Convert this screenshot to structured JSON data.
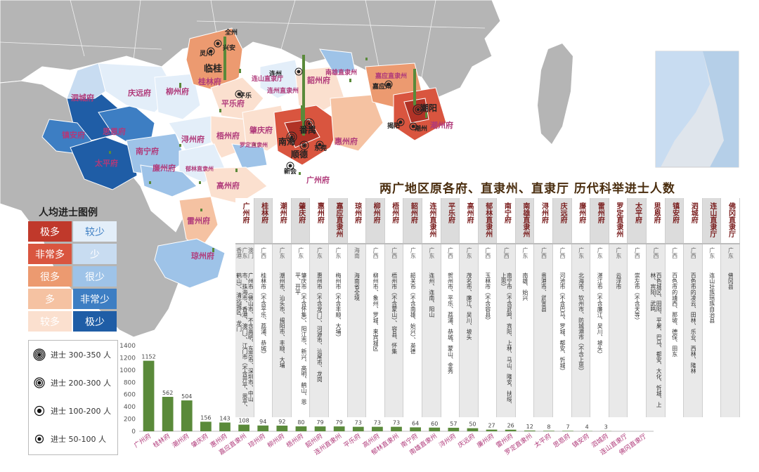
{
  "title": "两广地区原各府、直隶州、直隶厅 历代科举进士人数",
  "colors": {
    "ji_duo": "#c0392b",
    "fei_chang_duo": "#d9553f",
    "hen_duo": "#ec9a70",
    "duo": "#f5c2a2",
    "jiao_duo": "#fbe0cf",
    "jiao_shao": "#e3eef9",
    "shao": "#c8dcf1",
    "hen_shao": "#9ec3e8",
    "fei_chang_shao": "#3d7ec3",
    "ji_shao": "#1f5da6",
    "land_gray": "#b5b5b5",
    "sea": "#ffffff",
    "bar": "#5a8a3a",
    "header_bg": "#a4a4a4"
  },
  "legend": {
    "title": "人均进士图例",
    "left": [
      "极多",
      "非常多",
      "很多",
      "多",
      "较多"
    ],
    "right": [
      "较少",
      "少",
      "很少",
      "非常少",
      "极少"
    ]
  },
  "symbols": [
    {
      "icon": "target-4-icon",
      "label": "进士 300-350 人"
    },
    {
      "icon": "target-3-icon",
      "label": "进士 200-300 人"
    },
    {
      "icon": "target-2-icon",
      "label": "进士 100-200 人"
    },
    {
      "icon": "target-1-icon",
      "label": "进士 50-100 人"
    }
  ],
  "map_labels": [
    {
      "text": "临桂",
      "kind": "city"
    },
    {
      "text": "桂林府",
      "kind": "prefecture"
    },
    {
      "text": "全州",
      "kind": "county"
    },
    {
      "text": "兴安",
      "kind": "county"
    },
    {
      "text": "灵川",
      "kind": "county"
    },
    {
      "text": "平乐",
      "kind": "county"
    },
    {
      "text": "平乐府",
      "kind": "prefecture"
    },
    {
      "text": "连州",
      "kind": "county"
    },
    {
      "text": "连山直隶厅",
      "kind": "prefecture"
    },
    {
      "text": "连州直隶州",
      "kind": "prefecture"
    },
    {
      "text": "南雄直隶州",
      "kind": "prefecture"
    },
    {
      "text": "韶州府",
      "kind": "prefecture"
    },
    {
      "text": "嘉应直隶州",
      "kind": "prefecture"
    },
    {
      "text": "嘉应州",
      "kind": "county"
    },
    {
      "text": "潮阳",
      "kind": "city"
    },
    {
      "text": "揭阳",
      "kind": "county"
    },
    {
      "text": "潮州",
      "kind": "county"
    },
    {
      "text": "潮州府",
      "kind": "prefecture"
    },
    {
      "text": "庆远府",
      "kind": "prefecture"
    },
    {
      "text": "柳州府",
      "kind": "prefecture"
    },
    {
      "text": "思恩府",
      "kind": "prefecture"
    },
    {
      "text": "泗城府",
      "kind": "prefecture"
    },
    {
      "text": "镇安府",
      "kind": "prefecture"
    },
    {
      "text": "太平府",
      "kind": "prefecture"
    },
    {
      "text": "南宁府",
      "kind": "prefecture"
    },
    {
      "text": "浔州府",
      "kind": "prefecture"
    },
    {
      "text": "梧州府",
      "kind": "prefecture"
    },
    {
      "text": "肇庆府",
      "kind": "prefecture"
    },
    {
      "text": "罗定直隶州",
      "kind": "prefecture"
    },
    {
      "text": "郁林直隶州",
      "kind": "prefecture"
    },
    {
      "text": "廉州府",
      "kind": "prefecture"
    },
    {
      "text": "高州府",
      "kind": "prefecture"
    },
    {
      "text": "广州府",
      "kind": "prefecture"
    },
    {
      "text": "惠州府",
      "kind": "prefecture"
    },
    {
      "text": "雷州府",
      "kind": "prefecture"
    },
    {
      "text": "琼州府",
      "kind": "prefecture"
    },
    {
      "text": "番禺",
      "kind": "city"
    },
    {
      "text": "南海",
      "kind": "city"
    },
    {
      "text": "顺德",
      "kind": "city"
    },
    {
      "text": "东莞",
      "kind": "county"
    },
    {
      "text": "新会",
      "kind": "county"
    }
  ],
  "table": [
    {
      "name": "广州府",
      "prov": "澳门 广东 香港",
      "content": "广州市（佛山市、不含高明、东莞市、深圳市、中山市、珠海市、香港、澳门）、江门市（不含开平、恩平、鹤山）、清远城区、龙门"
    },
    {
      "name": "桂林府",
      "prov": "广西",
      "content": "桂林市（不含平乐、荔浦、恭城）"
    },
    {
      "name": "潮州府",
      "prov": "广东",
      "content": "潮州市、汕头市、揭阳市、丰顺、大埔"
    },
    {
      "name": "肇庆府",
      "prov": "广东",
      "content": "肇庆市（不含怀集）、阳江市、新兴、高明、鹤山、恩平、开平"
    },
    {
      "name": "惠州府",
      "prov": "广东",
      "content": "惠州市（不含龙门）、河源市、汕尾市、龙岗"
    },
    {
      "name": "嘉应直隶州",
      "prov": "广东",
      "content": "梅州市（不含丰顺、大埔）"
    },
    {
      "name": "琼州府",
      "prov": "海南",
      "content": "海南省全境"
    },
    {
      "name": "柳州府",
      "prov": "广西",
      "content": "柳州市、象州、罗城、来宾城区"
    },
    {
      "name": "梧州府",
      "prov": "广西",
      "content": "梧州市（不含蒙山）、容县、怀集"
    },
    {
      "name": "韶州府",
      "prov": "广东",
      "content": "韶关市（不含南雄、始兴）、英德"
    },
    {
      "name": "连州直隶州",
      "prov": "广东",
      "content": "连州、连南、阳山"
    },
    {
      "name": "平乐府",
      "prov": "广西",
      "content": "贺州市、平乐、荔浦、恭城、蒙山、金秀"
    },
    {
      "name": "高州府",
      "prov": "广东",
      "content": "茂名市、廉江、吴川、坡头"
    },
    {
      "name": "郁林直隶州",
      "prov": "广西",
      "content": "玉林市（不含容县）"
    },
    {
      "name": "南宁府",
      "prov": "广西",
      "content": "南宁市（不含武鸣、宾阳、上林、马山、隆安、扶绥、上思）"
    },
    {
      "name": "南雄直隶州",
      "prov": "广东",
      "content": "南雄、始兴"
    },
    {
      "name": "浔州府",
      "prov": "广西",
      "content": "贵港市、武宣县"
    },
    {
      "name": "庆远府",
      "prov": "广西",
      "content": "河池市（不含巴马、罗城、都安、忻城）"
    },
    {
      "name": "廉州府",
      "prov": "广东",
      "content": "北海市、钦州市、防城港市（不含上思）"
    },
    {
      "name": "雷州府",
      "prov": "广东",
      "content": "湛江市（不含廉江、吴川、坡头）"
    },
    {
      "name": "罗定直隶州",
      "prov": "广东",
      "content": "云浮市"
    },
    {
      "name": "太平府",
      "prov": "广西",
      "content": "崇左市（不含天等）"
    },
    {
      "name": "思恩府",
      "prov": "广西",
      "content": "百色城区、田阳、平果、巴马、都安、大化、忻城、上林、宾阳、武鸣"
    },
    {
      "name": "镇安府",
      "prov": "广西",
      "content": "百色市的靖西、那坡、德保、田东"
    },
    {
      "name": "泗城府",
      "prov": "广西",
      "content": "百色市的凌云、田林、乐业、西林、隆林"
    },
    {
      "name": "连山直隶厅",
      "prov": "广东",
      "content": "连山壮族瑶族自治县"
    },
    {
      "name": "佛冈直隶厅",
      "prov": "广东",
      "content": "佛冈县"
    }
  ],
  "chart_data": {
    "type": "bar",
    "title": "",
    "xlabel": "",
    "ylabel": "",
    "ylim": [
      0,
      1400
    ],
    "yticks": [
      0,
      200,
      400,
      600,
      800,
      1000,
      1200,
      1400
    ],
    "categories": [
      "广州府",
      "桂林府",
      "潮州府",
      "肇庆府",
      "惠州府",
      "嘉应直隶州",
      "琼州府",
      "柳州府",
      "梧州府",
      "韶州府",
      "连州直隶州",
      "平乐府",
      "高州府",
      "郁林直隶州",
      "南宁府",
      "南雄直隶州",
      "浔州府",
      "庆远府",
      "廉州府",
      "雷州府",
      "罗定直隶州",
      "太平府",
      "思恩府",
      "镇安府",
      "泗城府",
      "连山直隶厅",
      "佛冈直隶厅"
    ],
    "values": [
      1152,
      562,
      504,
      156,
      143,
      108,
      94,
      92,
      80,
      79,
      79,
      73,
      73,
      73,
      64,
      60,
      57,
      50,
      27,
      26,
      12,
      8,
      7,
      4,
      3,
      0,
      0
    ],
    "value_labels": [
      "1152",
      "562",
      "504",
      "156",
      "143",
      "108",
      "94",
      "92",
      "80",
      "79",
      "79",
      "73",
      "73",
      "73",
      "64",
      "60",
      "57",
      "50",
      "27",
      "26",
      "12",
      "8",
      "7",
      "4",
      "3",
      "",
      ""
    ]
  }
}
